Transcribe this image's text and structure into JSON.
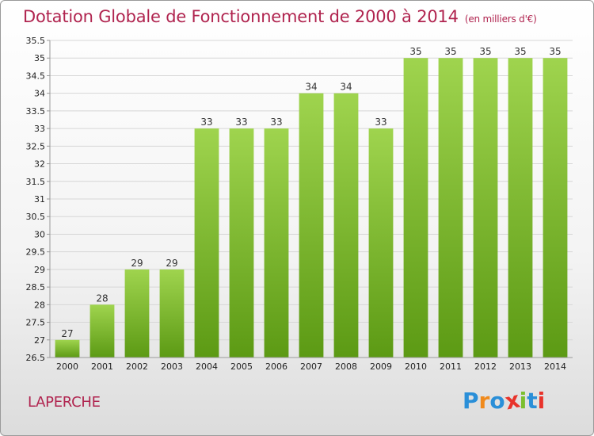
{
  "header": {
    "title": "Dotation Globale de Fonctionnement de 2000 à 2014",
    "subtitle": "(en milliers d'€)"
  },
  "footer": {
    "location": "LAPERCHE",
    "logo_text": "Proxiti"
  },
  "colors": {
    "title": "#b0244f",
    "bar_top": "#9fd44e",
    "bar_bottom": "#5c9a14",
    "grid": "#d6d6d6",
    "axis": "#999999"
  },
  "chart_data": {
    "type": "bar",
    "categories": [
      "2000",
      "2001",
      "2002",
      "2003",
      "2004",
      "2005",
      "2006",
      "2007",
      "2008",
      "2009",
      "2010",
      "2011",
      "2012",
      "2013",
      "2014"
    ],
    "values": [
      27,
      28,
      29,
      29,
      33,
      33,
      33,
      34,
      34,
      33,
      35,
      35,
      35,
      35,
      35
    ],
    "data_labels": [
      "27",
      "28",
      "29",
      "29",
      "33",
      "33",
      "33",
      "34",
      "34",
      "33",
      "35",
      "35",
      "35",
      "35",
      "35"
    ],
    "title": "Dotation Globale de Fonctionnement de 2000 à 2014",
    "subtitle": "(en milliers d'€)",
    "xlabel": "",
    "ylabel": "",
    "ylim": [
      26.5,
      35.5
    ],
    "yticks": [
      "26.5",
      "27",
      "27.5",
      "28",
      "28.5",
      "29",
      "29.5",
      "30",
      "30.5",
      "31",
      "31.5",
      "32",
      "32.5",
      "33",
      "33.5",
      "34",
      "34.5",
      "35",
      "35.5"
    ],
    "grid": true,
    "legend": "none"
  }
}
